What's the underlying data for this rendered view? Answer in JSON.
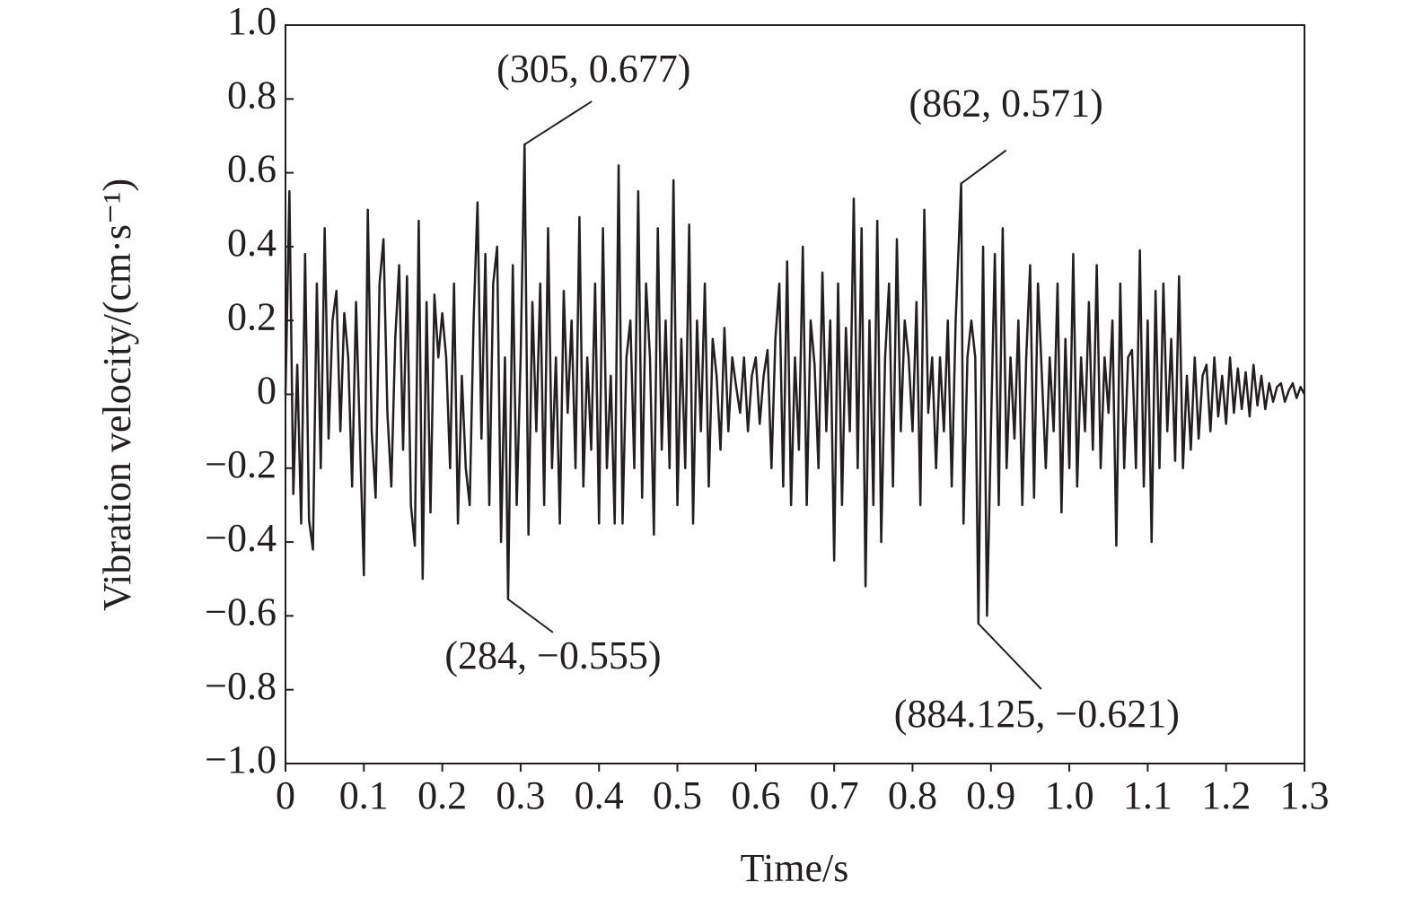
{
  "chart_data": {
    "type": "line",
    "x_label": "Time/s",
    "y_label": "Vibration velocity/(cm·s⁻¹)",
    "xlim": [
      0,
      1.3
    ],
    "ylim": [
      -1,
      1
    ],
    "xticks": [
      0,
      0.1,
      0.2,
      0.3,
      0.4,
      0.5,
      0.6,
      0.7,
      0.8,
      0.9,
      {
        "value": 1,
        "label": "1.0"
      },
      1.1,
      1.2,
      1.3
    ],
    "yticks": [
      {
        "value": -1,
        "label": "−1.0"
      },
      {
        "value": -0.8,
        "label": "−0.8"
      },
      {
        "value": -0.6,
        "label": "−0.6"
      },
      {
        "value": -0.4,
        "label": "−0.4"
      },
      {
        "value": -0.2,
        "label": "−0.2"
      },
      0,
      0.2,
      0.4,
      0.6,
      0.8,
      {
        "value": 1,
        "label": "1.0"
      }
    ],
    "grid": false,
    "series": [
      {
        "color": "#231f20",
        "x": [
          0,
          0.005,
          0.01,
          0.015,
          0.02,
          0.025,
          0.03,
          0.035,
          0.04,
          0.045,
          0.05,
          0.055,
          0.06,
          0.065,
          0.07,
          0.075,
          0.08,
          0.085,
          0.09,
          0.095,
          0.1,
          0.105,
          0.11,
          0.115,
          0.12,
          0.125,
          0.13,
          0.135,
          0.14,
          0.145,
          0.15,
          0.155,
          0.16,
          0.165,
          0.17,
          0.175,
          0.18,
          0.185,
          0.19,
          0.195,
          0.2,
          0.205,
          0.21,
          0.215,
          0.22,
          0.225,
          0.23,
          0.235,
          0.24,
          0.245,
          0.25,
          0.255,
          0.26,
          0.265,
          0.27,
          0.275,
          0.28,
          0.284,
          0.29,
          0.295,
          0.3,
          0.305,
          0.31,
          0.315,
          0.32,
          0.325,
          0.33,
          0.335,
          0.34,
          0.345,
          0.35,
          0.355,
          0.36,
          0.365,
          0.37,
          0.375,
          0.38,
          0.385,
          0.39,
          0.395,
          0.4,
          0.405,
          0.41,
          0.415,
          0.42,
          0.425,
          0.43,
          0.435,
          0.44,
          0.445,
          0.45,
          0.455,
          0.46,
          0.465,
          0.47,
          0.475,
          0.48,
          0.485,
          0.49,
          0.495,
          0.5,
          0.505,
          0.51,
          0.515,
          0.52,
          0.525,
          0.53,
          0.535,
          0.54,
          0.545,
          0.55,
          0.555,
          0.56,
          0.565,
          0.57,
          0.575,
          0.58,
          0.585,
          0.59,
          0.595,
          0.6,
          0.605,
          0.61,
          0.615,
          0.62,
          0.625,
          0.63,
          0.635,
          0.64,
          0.645,
          0.65,
          0.655,
          0.66,
          0.665,
          0.67,
          0.675,
          0.68,
          0.685,
          0.69,
          0.695,
          0.7,
          0.705,
          0.71,
          0.715,
          0.72,
          0.725,
          0.73,
          0.735,
          0.74,
          0.745,
          0.75,
          0.755,
          0.76,
          0.765,
          0.77,
          0.775,
          0.78,
          0.785,
          0.79,
          0.795,
          0.8,
          0.805,
          0.81,
          0.815,
          0.82,
          0.825,
          0.83,
          0.835,
          0.84,
          0.845,
          0.85,
          0.855,
          0.862,
          0.865,
          0.87,
          0.875,
          0.88,
          0.884,
          0.89,
          0.895,
          0.9,
          0.905,
          0.91,
          0.915,
          0.92,
          0.925,
          0.93,
          0.935,
          0.94,
          0.945,
          0.95,
          0.955,
          0.96,
          0.965,
          0.97,
          0.975,
          0.98,
          0.985,
          0.99,
          0.995,
          1.0,
          1.005,
          1.01,
          1.015,
          1.02,
          1.025,
          1.03,
          1.035,
          1.04,
          1.045,
          1.05,
          1.055,
          1.06,
          1.065,
          1.07,
          1.075,
          1.08,
          1.085,
          1.09,
          1.095,
          1.1,
          1.105,
          1.11,
          1.115,
          1.12,
          1.125,
          1.13,
          1.135,
          1.14,
          1.145,
          1.15,
          1.155,
          1.16,
          1.165,
          1.17,
          1.175,
          1.18,
          1.185,
          1.19,
          1.195,
          1.2,
          1.205,
          1.21,
          1.215,
          1.22,
          1.225,
          1.23,
          1.235,
          1.24,
          1.245,
          1.25,
          1.255,
          1.26,
          1.265,
          1.27,
          1.275,
          1.28,
          1.285,
          1.29,
          1.295,
          1.3
        ],
        "values": [
          0,
          0.55,
          -0.27,
          0.08,
          -0.35,
          0.38,
          -0.34,
          -0.42,
          0.3,
          -0.2,
          0.45,
          -0.12,
          0.2,
          0.28,
          -0.1,
          0.22,
          0.1,
          -0.25,
          0.25,
          -0.12,
          -0.49,
          0.5,
          -0.1,
          -0.28,
          0.3,
          0.42,
          -0.05,
          -0.25,
          0.15,
          0.35,
          -0.15,
          0.32,
          -0.3,
          -0.41,
          0.47,
          -0.5,
          0.25,
          -0.32,
          0.27,
          0.1,
          0.22,
          0.1,
          -0.2,
          0.3,
          -0.35,
          0.05,
          -0.2,
          -0.3,
          0.2,
          0.52,
          -0.12,
          0.38,
          -0.3,
          0.3,
          0.4,
          -0.4,
          0.1,
          -0.555,
          0.35,
          -0.3,
          0.1,
          0.677,
          -0.38,
          0.25,
          -0.1,
          0.3,
          -0.3,
          0.45,
          -0.2,
          0.1,
          -0.35,
          0.28,
          -0.05,
          0.2,
          -0.2,
          0.48,
          -0.25,
          0.1,
          -0.15,
          0.3,
          -0.35,
          0.45,
          -0.2,
          0.05,
          -0.35,
          0.62,
          -0.35,
          0.1,
          0.2,
          -0.2,
          0.55,
          -0.28,
          0.3,
          0.1,
          -0.38,
          0.45,
          -0.15,
          0.2,
          -0.2,
          0.58,
          -0.3,
          0.15,
          -0.2,
          0.46,
          -0.35,
          0.2,
          -0.1,
          0.3,
          -0.25,
          0.15,
          0.05,
          -0.15,
          0.18,
          -0.1,
          0.1,
          0.02,
          -0.05,
          0.1,
          -0.1,
          0.05,
          0.1,
          -0.08,
          0.05,
          0.12,
          -0.2,
          0.15,
          0.3,
          -0.25,
          0.36,
          -0.3,
          0.1,
          -0.15,
          0.4,
          -0.3,
          0.2,
          0.08,
          -0.2,
          0.33,
          -0.1,
          0.2,
          -0.45,
          0.3,
          -0.3,
          0.18,
          -0.1,
          0.53,
          -0.2,
          0.45,
          -0.52,
          0.2,
          -0.3,
          0.47,
          -0.4,
          0.1,
          0.3,
          -0.25,
          0.42,
          -0.1,
          0.2,
          0.1,
          -0.1,
          0.25,
          -0.3,
          0.5,
          -0.05,
          0.1,
          -0.2,
          0.1,
          -0.1,
          0.2,
          -0.25,
          0.2,
          0.571,
          -0.35,
          0.1,
          0.2,
          0.1,
          -0.621,
          0.4,
          -0.6,
          -0.1,
          0.38,
          -0.3,
          0.45,
          -0.2,
          0.1,
          -0.12,
          0.2,
          -0.3,
          0.1,
          0.35,
          -0.28,
          0.3,
          0.05,
          -0.2,
          0.1,
          -0.1,
          0.3,
          -0.32,
          0.15,
          -0.2,
          0.38,
          -0.25,
          0.1,
          -0.1,
          0.25,
          -0.15,
          0.35,
          -0.2,
          0.1,
          -0.05,
          0.2,
          -0.41,
          0.3,
          -0.2,
          0.1,
          0.12,
          -0.2,
          0.39,
          -0.25,
          0.2,
          -0.4,
          0.28,
          -0.2,
          0.3,
          -0.1,
          0.15,
          -0.18,
          0.32,
          -0.2,
          0.05,
          -0.15,
          0.1,
          -0.12,
          0.05,
          0.08,
          -0.1,
          0.1,
          -0.06,
          0.05,
          -0.08,
          0.1,
          -0.05,
          0.07,
          -0.04,
          0.06,
          -0.06,
          0.08,
          -0.03,
          0.05,
          -0.04,
          0.03,
          -0.02,
          0.02,
          0.03,
          -0.02,
          0.01,
          0.03,
          -0.01,
          0.02,
          0
        ]
      }
    ],
    "annotations": [
      {
        "text": "(305, 0.677)",
        "x": 0.305,
        "y": 0.677
      },
      {
        "text": "(284, −0.555)",
        "x": 0.284,
        "y": -0.555
      },
      {
        "text": "(862, 0.571)",
        "x": 0.862,
        "y": 0.571
      },
      {
        "text": "(884.125, −0.621)",
        "x": 0.884,
        "y": -0.621
      }
    ]
  }
}
